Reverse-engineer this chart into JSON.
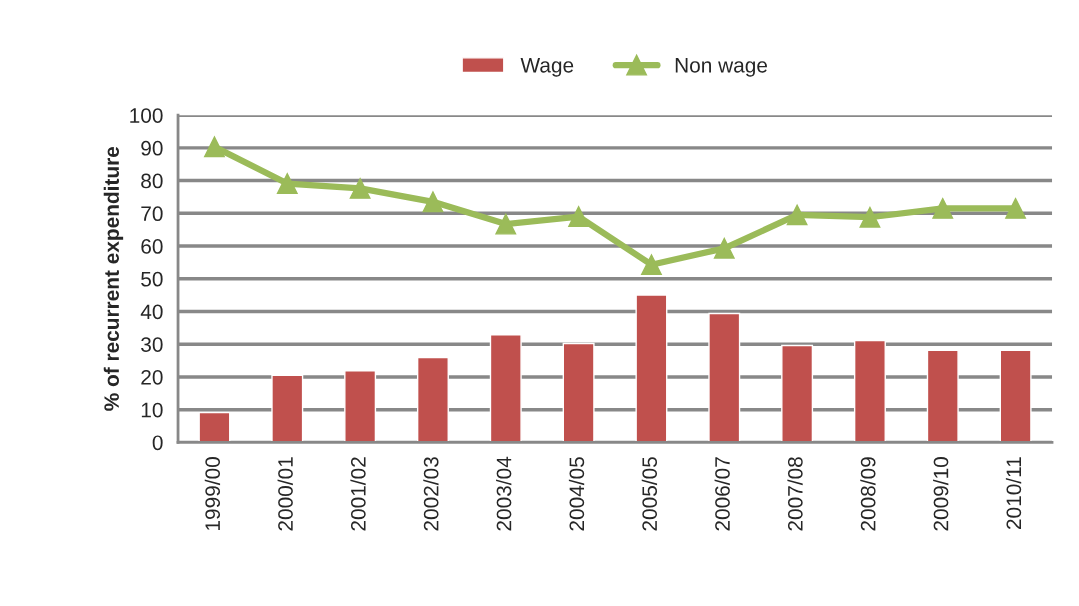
{
  "chart_data": {
    "type": "bar",
    "ylabel": "% of recurrent expenditure",
    "categories": [
      "1999/00",
      "2000/01",
      "2001/02",
      "2002/03",
      "2003/04",
      "2004/05",
      "2005/05",
      "2006/07",
      "2007/08",
      "2008/09",
      "2009/10",
      "2010/11"
    ],
    "series": [
      {
        "name": "Wage",
        "color": "#c0504d",
        "values": [
          9.1,
          20.5,
          21.9,
          25.9,
          32.9,
          30.2,
          45.0,
          39.4,
          29.6,
          31.1,
          28.1,
          28.1
        ]
      },
      {
        "name": "Non wage",
        "type": "line",
        "color": "#9bbb59",
        "marker": "triangle",
        "values": [
          90.3,
          79.1,
          77.6,
          73.5,
          66.7,
          69.0,
          54.3,
          59.3,
          69.5,
          68.8,
          71.5,
          71.5
        ]
      }
    ],
    "ylim": [
      0,
      100
    ],
    "yticks": [
      0,
      10,
      20,
      30,
      40,
      50,
      60,
      70,
      80,
      90,
      100
    ],
    "grid": "y",
    "legend": "top"
  }
}
